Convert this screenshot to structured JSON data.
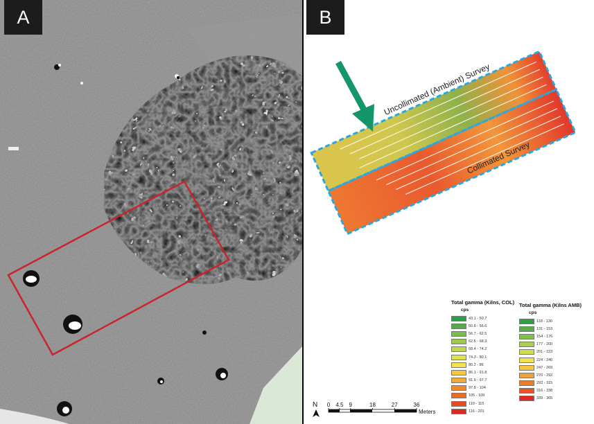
{
  "panels": {
    "a": {
      "label": "A"
    },
    "b": {
      "label": "B"
    }
  },
  "survey_labels": {
    "uncollimated": "Uncollimated (Ambient) Survey",
    "collimated": "Collimated Survey"
  },
  "legend_col": {
    "title": "Total gamma (Kilns, COL)",
    "units": "cps",
    "items": [
      {
        "range": "43.1 - 50.7",
        "color": "#2f9d44"
      },
      {
        "range": "50.8 - 56.6",
        "color": "#52ad45"
      },
      {
        "range": "56.7 - 62.5",
        "color": "#78bd47"
      },
      {
        "range": "62.6 - 68.3",
        "color": "#9ccb49"
      },
      {
        "range": "68.4 - 74.2",
        "color": "#bed94c"
      },
      {
        "range": "74.3 - 80.1",
        "color": "#dde34f"
      },
      {
        "range": "80.2 - 86",
        "color": "#f6e24c"
      },
      {
        "range": "86.1 - 91.8",
        "color": "#f7c73f"
      },
      {
        "range": "91.9 - 97.7",
        "color": "#f5a935"
      },
      {
        "range": "97.8 - 104",
        "color": "#f28a2d"
      },
      {
        "range": "105 - 109",
        "color": "#ed6a27"
      },
      {
        "range": "110 - 115",
        "color": "#e64a23"
      },
      {
        "range": "116 - 201",
        "color": "#dc2a22"
      }
    ]
  },
  "legend_amb": {
    "title": "Total gamma (Kilns AMB)",
    "units": "cps",
    "items": [
      {
        "range": "118 - 130",
        "color": "#2f9d44"
      },
      {
        "range": "131 - 153",
        "color": "#56ae45"
      },
      {
        "range": "154 - 176",
        "color": "#82c048"
      },
      {
        "range": "177 - 200",
        "color": "#aad04a"
      },
      {
        "range": "201 - 223",
        "color": "#cfdd4d"
      },
      {
        "range": "224 - 246",
        "color": "#f2e34e"
      },
      {
        "range": "247 - 269",
        "color": "#f6c43e"
      },
      {
        "range": "270 - 292",
        "color": "#f3a034"
      },
      {
        "range": "293 - 315",
        "color": "#ef7b2b"
      },
      {
        "range": "316 - 338",
        "color": "#e75226"
      },
      {
        "range": "339 - 365",
        "color": "#dc2a22"
      }
    ]
  },
  "north_arrow": {
    "label": "N"
  },
  "scale_bar": {
    "ticks": [
      "0",
      "4.5",
      "9",
      "18",
      "27",
      "36"
    ],
    "tick_values": [
      0,
      4.5,
      9,
      18,
      27,
      36
    ],
    "unit": "Meters"
  },
  "colors": {
    "highlight_box": "#c8242e",
    "survey_outline": "#29a7e1",
    "arrow": "#15956a"
  }
}
